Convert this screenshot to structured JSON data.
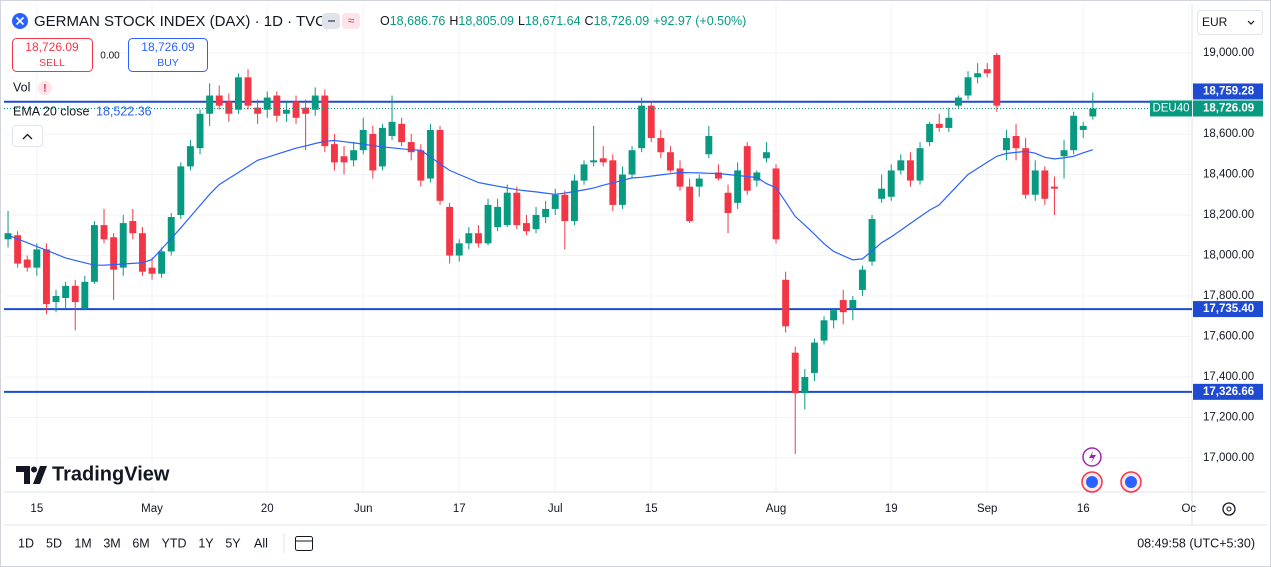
{
  "header": {
    "title": "GERMAN STOCK INDEX (DAX) · 1D · TVC",
    "ohlc": [
      {
        "key": "O",
        "value": "18,686.76"
      },
      {
        "key": "H",
        "value": "18,805.09"
      },
      {
        "key": "L",
        "value": "18,671.64"
      },
      {
        "key": "C",
        "value": "18,726.09"
      }
    ],
    "change": "+92.97 (+0.50%)",
    "sell_price": "18,726.09",
    "sell": "SELL",
    "spread": "0.00",
    "buy_price": "18,726.09",
    "buy": "BUY",
    "volume": "Vol",
    "ema_value": "18,522.36",
    "currency": "EUR",
    "brand": "TradingView",
    "ranges": [
      "1D",
      "5D",
      "1M",
      "3M",
      "6M",
      "YTD",
      "1Y",
      "5Y",
      "All"
    ],
    "time": "08:49:58 (UTC+5:30)"
  },
  "chart_data": {
    "type": "candlestick",
    "up_color": "#089981",
    "down_color": "#f23645",
    "open": [
      18080,
      18100,
      17980,
      17940,
      18030,
      17770,
      17790,
      17850,
      17740,
      17870,
      18150,
      18090,
      17940,
      18170,
      18110,
      17940,
      17910,
      18020,
      18200,
      18440,
      18530,
      18700,
      18790,
      18760,
      18720,
      18880,
      18730,
      18720,
      18790,
      18700,
      18760,
      18730,
      18720,
      18790,
      18550,
      18490,
      18470,
      18520,
      18600,
      18440,
      18590,
      18650,
      18560,
      18520,
      18380,
      18620,
      18240,
      18000,
      18060,
      18110,
      18060,
      18140,
      18150,
      18310,
      18160,
      18130,
      18190,
      18230,
      18300,
      18170,
      18370,
      18460,
      18480,
      18470,
      18250,
      18400,
      18530,
      18740,
      18580,
      18510,
      18430,
      18340,
      18340,
      18500,
      18410,
      18310,
      18260,
      18540,
      18370,
      18480,
      18430,
      17880,
      17520,
      17320,
      17420,
      17580,
      17680,
      17780,
      17740,
      17830,
      17970,
      18280,
      18290,
      18420,
      18470,
      18370,
      18560,
      18650,
      18630,
      18740,
      18790,
      18880,
      18920,
      18990,
      18520,
      18590,
      18530,
      18300,
      18420,
      18340,
      18490,
      18520,
      18620,
      18686.76
    ],
    "high": [
      18220,
      18120,
      18000,
      18060,
      18060,
      17830,
      17870,
      17880,
      17900,
      18170,
      18230,
      18110,
      18200,
      18230,
      18140,
      17990,
      18040,
      18210,
      18460,
      18570,
      18720,
      18850,
      18840,
      18800,
      18900,
      18920,
      18770,
      18810,
      18810,
      18760,
      18790,
      18770,
      18830,
      18820,
      18600,
      18540,
      18560,
      18680,
      18640,
      18650,
      18790,
      18680,
      18600,
      18550,
      18650,
      18640,
      18260,
      18080,
      18140,
      18150,
      18280,
      18280,
      18350,
      18340,
      18200,
      18240,
      18270,
      18330,
      18320,
      18400,
      18470,
      18640,
      18540,
      18500,
      18440,
      18540,
      18780,
      18760,
      18620,
      18540,
      18470,
      18380,
      18400,
      18640,
      18450,
      18350,
      18460,
      18560,
      18420,
      18560,
      18450,
      17920,
      17550,
      17440,
      17590,
      17700,
      17740,
      17830,
      17800,
      17950,
      18200,
      18400,
      18450,
      18500,
      18510,
      18560,
      18660,
      18700,
      18730,
      18790,
      18910,
      18950,
      18950,
      19000,
      18620,
      18650,
      18580,
      18470,
      18440,
      18390,
      18570,
      18710,
      18660,
      18805.09
    ],
    "low": [
      18040,
      17940,
      17920,
      17900,
      17710,
      17720,
      17740,
      17630,
      17730,
      17860,
      18060,
      17780,
      17900,
      18080,
      17900,
      17880,
      17890,
      18000,
      18180,
      18420,
      18500,
      18640,
      18720,
      18660,
      18700,
      18720,
      18650,
      18680,
      18660,
      18660,
      18650,
      18520,
      18690,
      18510,
      18420,
      18400,
      18440,
      18500,
      18380,
      18420,
      18570,
      18540,
      18470,
      18340,
      18360,
      18250,
      17960,
      17970,
      18030,
      18040,
      18050,
      18120,
      18140,
      18130,
      18100,
      18110,
      18160,
      18200,
      18030,
      18150,
      18350,
      18440,
      18440,
      18220,
      18230,
      18380,
      18510,
      18560,
      18480,
      18410,
      18320,
      18160,
      18290,
      18480,
      18370,
      18110,
      18230,
      18300,
      18340,
      18460,
      18060,
      17620,
      17020,
      17240,
      17380,
      17560,
      17640,
      17660,
      17680,
      17800,
      17950,
      18260,
      18270,
      18400,
      18340,
      18350,
      18540,
      18610,
      18610,
      18730,
      18770,
      18850,
      18880,
      18710,
      18470,
      18470,
      18280,
      18270,
      18250,
      18200,
      18380,
      18500,
      18580,
      18671.64
    ],
    "close": [
      18110,
      17960,
      17940,
      18030,
      17760,
      17800,
      17850,
      17770,
      17870,
      18150,
      18080,
      17930,
      18160,
      18110,
      17920,
      17910,
      18020,
      18190,
      18440,
      18540,
      18700,
      18790,
      18740,
      18700,
      18880,
      18740,
      18700,
      18780,
      18690,
      18720,
      18680,
      18700,
      18790,
      18540,
      18460,
      18460,
      18520,
      18620,
      18420,
      18630,
      18660,
      18560,
      18510,
      18370,
      18620,
      18270,
      18000,
      18060,
      18110,
      18060,
      18250,
      18240,
      18310,
      18150,
      18120,
      18200,
      18230,
      18300,
      18170,
      18370,
      18450,
      18470,
      18460,
      18250,
      18400,
      18520,
      18740,
      18580,
      18510,
      18420,
      18340,
      18170,
      18380,
      18590,
      18380,
      18210,
      18420,
      18320,
      18410,
      18510,
      18080,
      17650,
      17320,
      17400,
      17570,
      17680,
      17730,
      17720,
      17780,
      17930,
      18180,
      18330,
      18420,
      18470,
      18370,
      18530,
      18650,
      18630,
      18680,
      18780,
      18880,
      18900,
      18900,
      18740,
      18580,
      18530,
      18300,
      18420,
      18280,
      18330,
      18520,
      18690,
      18640,
      18726.09
    ],
    "overlays": [
      {
        "name": "EMA 20 close",
        "color": "#2962ff",
        "values": [
          18100,
          18081,
          18063,
          18044,
          18026,
          18007,
          17988,
          17976,
          17964,
          17952,
          17952,
          17955,
          17958,
          17961,
          17964,
          17980,
          18032,
          18084,
          18137,
          18192,
          18247,
          18302,
          18350,
          18380,
          18410,
          18440,
          18470,
          18485,
          18500,
          18515,
          18530,
          18541,
          18553,
          18564,
          18568,
          18562,
          18556,
          18550,
          18542,
          18537,
          18532,
          18527,
          18522,
          18520,
          18487,
          18453,
          18420,
          18400,
          18380,
          18360,
          18351,
          18342,
          18334,
          18325,
          18319,
          18314,
          18308,
          18302,
          18308,
          18316,
          18324,
          18333,
          18347,
          18359,
          18371,
          18383,
          18386,
          18392,
          18398,
          18404,
          18410,
          18409,
          18408,
          18406,
          18405,
          18400,
          18395,
          18390,
          18385,
          18355,
          18335,
          18265,
          18193,
          18150,
          18105,
          18058,
          18020,
          17999,
          17978,
          17983,
          18022,
          18063,
          18092,
          18125,
          18158,
          18191,
          18224,
          18250,
          18300,
          18350,
          18400,
          18430,
          18460,
          18490,
          18504,
          18509,
          18514,
          18505,
          18485,
          18477,
          18482,
          18490,
          18507,
          18522.36
        ]
      }
    ],
    "hlines": [
      {
        "value": 18759.28,
        "label": "18,759.28"
      },
      {
        "value": 17735.4,
        "label": "17,735.40"
      },
      {
        "value": 17326.66,
        "label": "17,326.66"
      }
    ],
    "hline_color": "#1e4bd2",
    "last_price": {
      "value": 18726.09,
      "label": "18,726.09",
      "tag": "DEU40"
    },
    "ylim": [
      16832,
      19242
    ],
    "yticks": [
      {
        "value": 19000,
        "label": "19,000.00"
      },
      {
        "value": 18600,
        "label": "18,600.00"
      },
      {
        "value": 18400,
        "label": "18,400.00"
      },
      {
        "value": 18200,
        "label": "18,200.00"
      },
      {
        "value": 18000,
        "label": "18,000.00"
      },
      {
        "value": 17800,
        "label": "17,800.00"
      },
      {
        "value": 17600,
        "label": "17,600.00"
      },
      {
        "value": 17400,
        "label": "17,400.00"
      },
      {
        "value": 17200,
        "label": "17,200.00"
      },
      {
        "value": 17000,
        "label": "17,000.00"
      }
    ],
    "xlim": [
      -0.42,
      123.33
    ],
    "xticks": [
      {
        "value": 3,
        "label": "15"
      },
      {
        "value": 15,
        "label": "May"
      },
      {
        "value": 27,
        "label": "20"
      },
      {
        "value": 37,
        "label": "Jun"
      },
      {
        "value": 47,
        "label": "17"
      },
      {
        "value": 57,
        "label": "Jul"
      },
      {
        "value": 67,
        "label": "15"
      },
      {
        "value": 80,
        "label": "Aug"
      },
      {
        "value": 92,
        "label": "19"
      },
      {
        "value": 102,
        "label": "Sep"
      },
      {
        "value": 112,
        "label": "16"
      },
      {
        "value": 123,
        "label": "Oc"
      }
    ],
    "grid": true
  }
}
